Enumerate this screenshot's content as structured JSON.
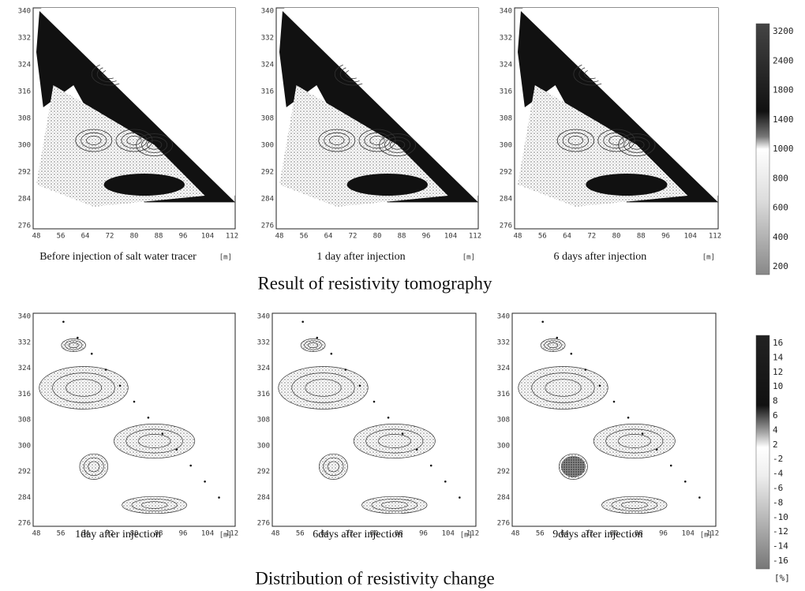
{
  "figure": {
    "sections": [
      {
        "title": "Result of resistivity tomography",
        "yticks": [
          "340",
          "332",
          "324",
          "316",
          "308",
          "300",
          "292",
          "284",
          "276"
        ],
        "xticks": [
          "48",
          "56",
          "64",
          "72",
          "80",
          "88",
          "96",
          "104",
          "112"
        ],
        "panels": [
          {
            "caption": "Before injection of salt water tracer",
            "unit": "[m]"
          },
          {
            "caption": "1 day after injection",
            "unit": "[m]"
          },
          {
            "caption": "6 days after injection",
            "unit": "[m]"
          }
        ],
        "colorbar": [
          "3200",
          "2400",
          "1800",
          "1400",
          "1000",
          "800",
          "600",
          "400",
          "200"
        ]
      },
      {
        "title": "Distribution of resistivity change",
        "yticks": [
          "340",
          "332",
          "324",
          "316",
          "308",
          "300",
          "292",
          "284",
          "276"
        ],
        "xticks": [
          "48",
          "56",
          "64",
          "72",
          "80",
          "88",
          "96",
          "104",
          "112"
        ],
        "panels": [
          {
            "caption": "1day after injection",
            "unit": "[m]"
          },
          {
            "caption": "6days after injection",
            "unit": "[m]"
          },
          {
            "caption": "9days after injection",
            "unit": "[m]"
          }
        ],
        "colorbar": [
          "16",
          "14",
          "12",
          "10",
          "8",
          "6",
          "4",
          "2",
          "-2",
          "-4",
          "-6",
          "-8",
          "-10",
          "-12",
          "-14",
          "-16"
        ],
        "colorbar_unit": "[%]"
      }
    ]
  }
}
